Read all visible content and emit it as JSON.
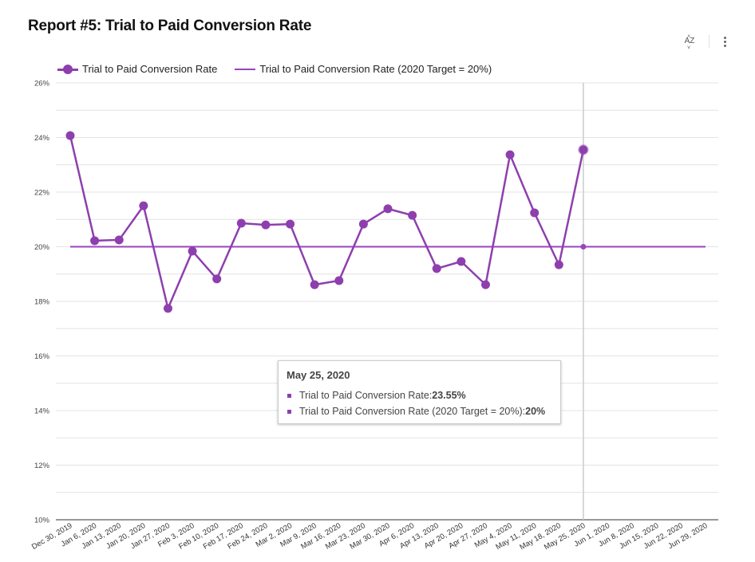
{
  "header": {
    "title": "Report #5: Trial to Paid Conversion Rate",
    "toolbar": {
      "sort_icon": "sort-az-icon",
      "sort_label": "AZ",
      "menu_icon": "more-vert-icon"
    }
  },
  "colors": {
    "series": "#8e3fae",
    "target": "#9a44bd",
    "grid": "#e3e3e3",
    "axis": "#333333",
    "crosshair": "#cccccc"
  },
  "chart_data": {
    "type": "line",
    "title": "Report #5: Trial to Paid Conversion Rate",
    "xlabel": "",
    "ylabel": "",
    "ylim": [
      10,
      26
    ],
    "yticks": [
      "10%",
      "12%",
      "14%",
      "16%",
      "18%",
      "20%",
      "22%",
      "24%",
      "26%"
    ],
    "ytick_values": [
      10,
      12,
      14,
      16,
      18,
      20,
      22,
      24,
      26
    ],
    "minor_grid_values": [
      11,
      13,
      15,
      17,
      19,
      21,
      23,
      25
    ],
    "grid": true,
    "legend_position": "top-left",
    "x": [
      "Dec 30, 2019",
      "Jan 6, 2020",
      "Jan 13, 2020",
      "Jan 20, 2020",
      "Jan 27, 2020",
      "Feb 3, 2020",
      "Feb 10, 2020",
      "Feb 17, 2020",
      "Feb 24, 2020",
      "Mar 2, 2020",
      "Mar 9, 2020",
      "Mar 16, 2020",
      "Mar 23, 2020",
      "Mar 30, 2020",
      "Apr 6, 2020",
      "Apr 13, 2020",
      "Apr 20, 2020",
      "Apr 27, 2020",
      "May 4, 2020",
      "May 11, 2020",
      "May 18, 2020",
      "May 25, 2020",
      "Jun 1, 2020",
      "Jun 8, 2020",
      "Jun 15, 2020",
      "Jun 22, 2020",
      "Jun 29, 2020"
    ],
    "series": [
      {
        "name": "Trial to Paid Conversion Rate",
        "style": "line-with-markers",
        "values": [
          24.07,
          20.22,
          20.25,
          21.5,
          17.74,
          19.84,
          18.82,
          20.86,
          20.8,
          20.83,
          18.61,
          18.76,
          20.83,
          21.39,
          21.15,
          19.2,
          19.46,
          18.61,
          23.37,
          21.24,
          19.34,
          23.55,
          null,
          null,
          null,
          null,
          null
        ]
      },
      {
        "name": "Trial to Paid Conversion Rate (2020 Target = 20%)",
        "style": "line",
        "values": [
          20,
          20,
          20,
          20,
          20,
          20,
          20,
          20,
          20,
          20,
          20,
          20,
          20,
          20,
          20,
          20,
          20,
          20,
          20,
          20,
          20,
          20,
          20,
          20,
          20,
          20,
          20
        ]
      }
    ],
    "hover_index": 21
  },
  "legend": [
    {
      "label": "Trial to Paid Conversion Rate"
    },
    {
      "label": "Trial to Paid Conversion Rate (2020 Target = 20%)"
    }
  ],
  "tooltip": {
    "date": "May 25, 2020",
    "rows": [
      {
        "label": "Trial to Paid Conversion Rate: ",
        "value": "23.55%"
      },
      {
        "label": "Trial to Paid Conversion Rate (2020 Target = 20%): ",
        "value": "20%"
      }
    ]
  }
}
